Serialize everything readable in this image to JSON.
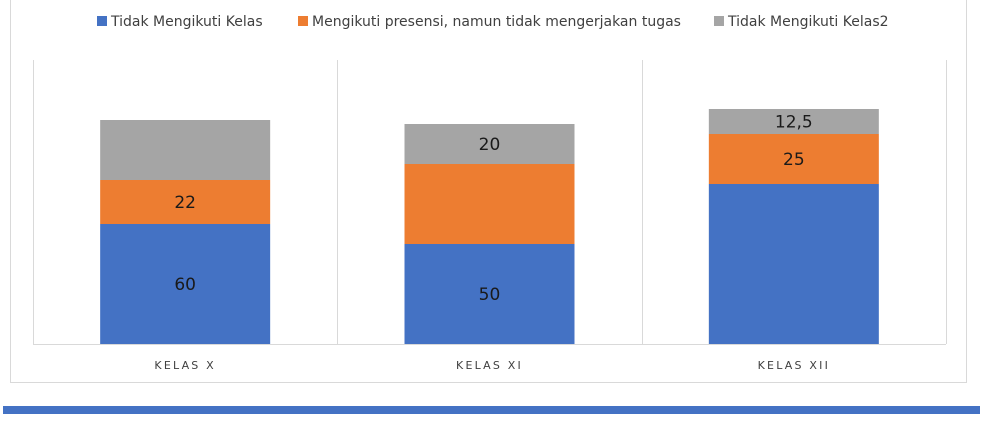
{
  "colors": {
    "series_blue": "#4472c4",
    "series_orange": "#ed7d31",
    "series_gray": "#a5a5a5",
    "gridline": "#d9d9d9",
    "bottom_rule": "#4472c4"
  },
  "chart_data": {
    "type": "bar",
    "stacked": true,
    "categories": [
      "KELAS X",
      "KELAS XI",
      "KELAS XII"
    ],
    "series": [
      {
        "name": "Tidak Mengikuti Kelas",
        "color": "#4472c4",
        "values": [
          60,
          50,
          80
        ],
        "labels": [
          "60",
          "50",
          ""
        ]
      },
      {
        "name": "Mengikuti presensi, namun tidak mengerjakan tugas",
        "color": "#ed7d31",
        "values": [
          22,
          40,
          25
        ],
        "labels": [
          "22",
          "",
          "25"
        ]
      },
      {
        "name": "Tidak Mengikuti Kelas2",
        "color": "#a5a5a5",
        "values": [
          30,
          20,
          12.5
        ],
        "labels": [
          "",
          "20",
          "12,5"
        ]
      }
    ],
    "ylim": [
      0,
      140
    ],
    "legend_position": "top",
    "grid": "vertical category separators",
    "title": "",
    "xlabel": "",
    "ylabel": ""
  }
}
